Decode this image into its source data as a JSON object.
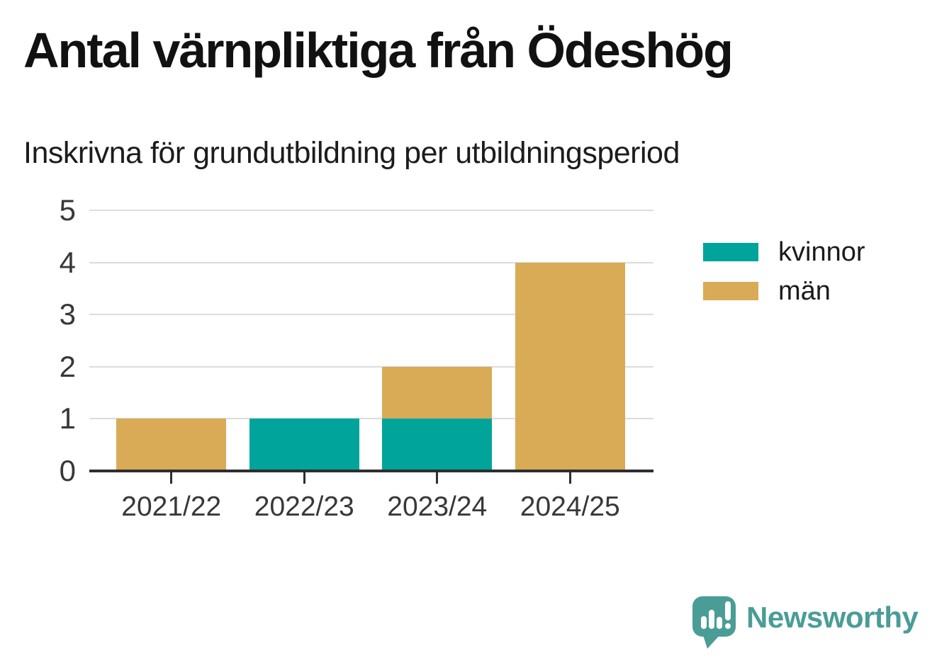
{
  "chart_data": {
    "type": "bar",
    "stacked": true,
    "title": "Antal värnpliktiga från Ödeshög",
    "subtitle": "Inskrivna för grundutbildning per utbildningsperiod",
    "categories": [
      "2021/22",
      "2022/23",
      "2023/24",
      "2024/25"
    ],
    "series": [
      {
        "name": "kvinnor",
        "color": "#00A49B",
        "values": [
          0,
          1,
          1,
          0
        ]
      },
      {
        "name": "män",
        "color": "#D9AB57",
        "values": [
          1,
          0,
          1,
          4
        ]
      }
    ],
    "ylim": [
      0,
      5
    ],
    "yticks": [
      0,
      1,
      2,
      3,
      4,
      5
    ],
    "grid": true,
    "legend_position": "right"
  },
  "footer": {
    "brand": "Newsworthy",
    "logo_color": "#4A9D96"
  },
  "colors": {
    "title_text": "#111111",
    "axis_text": "#383838",
    "gridline": "#DCDCDC",
    "baseline": "#2E2E2E",
    "background": "#FFFFFF"
  }
}
